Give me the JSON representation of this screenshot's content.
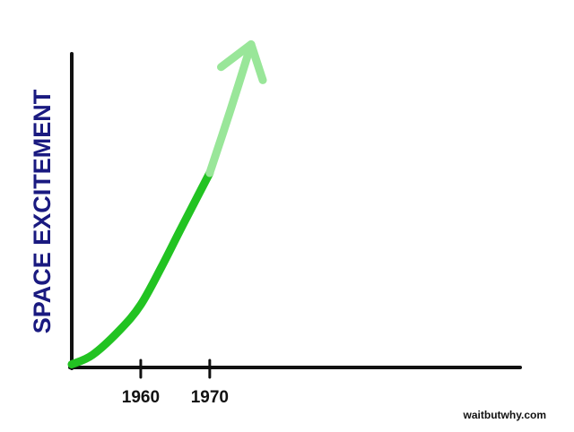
{
  "chart_data": {
    "type": "line",
    "title": "",
    "xlabel": "",
    "ylabel": "SPACE EXCITEMENT",
    "x_ticks": [
      "1960",
      "1970"
    ],
    "xlim": [
      1950,
      2015
    ],
    "ylim": [
      0,
      100
    ],
    "grid": false,
    "series": [
      {
        "style": "solid",
        "color": "#22c322",
        "x": [
          1950,
          1953,
          1957,
          1960,
          1963,
          1966,
          1970
        ],
        "y": [
          1,
          4,
          12,
          20,
          32,
          45,
          62
        ]
      },
      {
        "style": "projected-arrow",
        "color": "#99e699",
        "x": [
          1970,
          1973,
          1976
        ],
        "y": [
          62,
          82,
          103
        ]
      }
    ]
  },
  "watermark": "waitbutwhy.com",
  "colors": {
    "axis": "#111111",
    "ylabel": "#1a1a80",
    "solid_line": "#22c322",
    "projected_line": "#99e699"
  }
}
